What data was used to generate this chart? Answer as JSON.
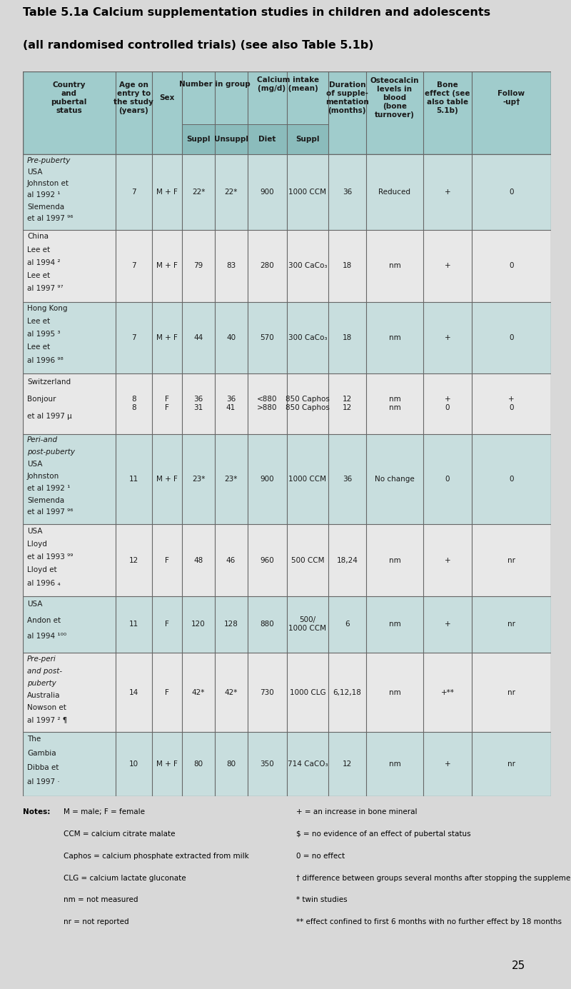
{
  "title_line1": "Table 5.1a Calcium supplementation studies in children and adolescents",
  "title_line2": "(all randomised controlled trials) (see also Table 5.1b)",
  "bg_color": "#d8d8d8",
  "header_bg": "#8bbcbc",
  "header_bg2": "#a0cccc",
  "row_shaded": "#c8dede",
  "row_unshaded": "#e8e8e8",
  "notes_left": [
    "Notes: M = male; F = female",
    "     CCM = calcium citrate malate",
    "     Caphos = calcium phosphate extracted from milk",
    "     CLG = calcium lactate gluconate",
    "     nm = not measured",
    "     nr = not reported"
  ],
  "notes_right": [
    "+ = an increase in bone mineral",
    "$ = no evidence of an effect of pubertal status",
    "0 = no effect",
    "† difference between groups several months after stopping the supplement",
    "* twin studies",
    "** effect confined to first 6 months with no further effect by 18 months"
  ],
  "rows": [
    {
      "country": "Pre-puberty\nUSA\nJohnston et\nal 1992 ¹\nSlemenda\net al 1997 ⁹⁶",
      "country_italic_lines": 1,
      "age": "7",
      "sex": "M + F",
      "suppl": "22*",
      "unsuppl": "22*",
      "diet": "900",
      "suppl_intake": "1000 CCM",
      "duration": "36",
      "osteocalcin": "Reduced",
      "bone": "+",
      "follow": "0",
      "shaded": true
    },
    {
      "country": "China\nLee et\nal 1994 ²\nLee et\nal 1997 ⁹⁷",
      "country_italic_lines": 0,
      "age": "7",
      "sex": "M + F",
      "suppl": "79",
      "unsuppl": "83",
      "diet": "280",
      "suppl_intake": "300 CaCo₃",
      "duration": "18",
      "osteocalcin": "nm",
      "bone": "+",
      "follow": "0",
      "shaded": false
    },
    {
      "country": "Hong Kong\nLee et\nal 1995 ³\nLee et\nal 1996 ⁹⁸",
      "country_italic_lines": 0,
      "age": "7",
      "sex": "M + F",
      "suppl": "44",
      "unsuppl": "40",
      "diet": "570",
      "suppl_intake": "300 CaCo₃",
      "duration": "18",
      "osteocalcin": "nm",
      "bone": "+",
      "follow": "0",
      "shaded": true
    },
    {
      "country": "Switzerland\nBonjour\net al 1997 µ",
      "country_italic_lines": 0,
      "age": "8\n8",
      "sex": "F\nF",
      "suppl": "36\n31",
      "unsuppl": "36\n41",
      "diet": "<880\n>880",
      "suppl_intake": "850 Caphos\n850 Caphos",
      "duration": "12\n12",
      "osteocalcin": "nm\nnm",
      "bone": "+\n0",
      "follow": "+\n0",
      "shaded": false
    },
    {
      "country": "Peri-and\npost-puberty\nUSA\nJohnston\net al 1992 ¹\nSlemenda\net al 1997 ⁹⁶",
      "country_italic_lines": 2,
      "age": "11",
      "sex": "M + F",
      "suppl": "23*",
      "unsuppl": "23*",
      "diet": "900",
      "suppl_intake": "1000 CCM",
      "duration": "36",
      "osteocalcin": "No change",
      "bone": "0",
      "follow": "0",
      "shaded": true
    },
    {
      "country": "USA\nLloyd\net al 1993 ⁹⁹\nLloyd et\nal 1996 ₄",
      "country_italic_lines": 0,
      "age": "12",
      "sex": "F",
      "suppl": "48",
      "unsuppl": "46",
      "diet": "960",
      "suppl_intake": "500 CCM",
      "duration": "18,24",
      "osteocalcin": "nm",
      "bone": "+",
      "follow": "nr",
      "shaded": false
    },
    {
      "country": "USA\nAndon et\nal 1994 ¹⁰⁰",
      "country_italic_lines": 0,
      "age": "11",
      "sex": "F",
      "suppl": "120",
      "unsuppl": "128",
      "diet": "880",
      "suppl_intake": "500/\n1000 CCM",
      "duration": "6",
      "osteocalcin": "nm",
      "bone": "+",
      "follow": "nr",
      "shaded": true
    },
    {
      "country": "Pre-peri\nand post-\npuberty\nAustralia\nNowson et\nal 1997 ² ¶",
      "country_italic_lines": 3,
      "age": "14",
      "sex": "F",
      "suppl": "42*",
      "unsuppl": "42*",
      "diet": "730",
      "suppl_intake": "1000 CLG",
      "duration": "6,12,18",
      "osteocalcin": "nm",
      "bone": "+**",
      "follow": "nr",
      "shaded": false
    },
    {
      "country": "The\nGambia\nDibba et\nal 1997 ·",
      "country_italic_lines": 0,
      "age": "10",
      "sex": "M + F",
      "suppl": "80",
      "unsuppl": "80",
      "diet": "350",
      "suppl_intake": "714 CaCO₃",
      "duration": "12",
      "osteocalcin": "nm",
      "bone": "+",
      "follow": "nr",
      "shaded": true
    }
  ]
}
